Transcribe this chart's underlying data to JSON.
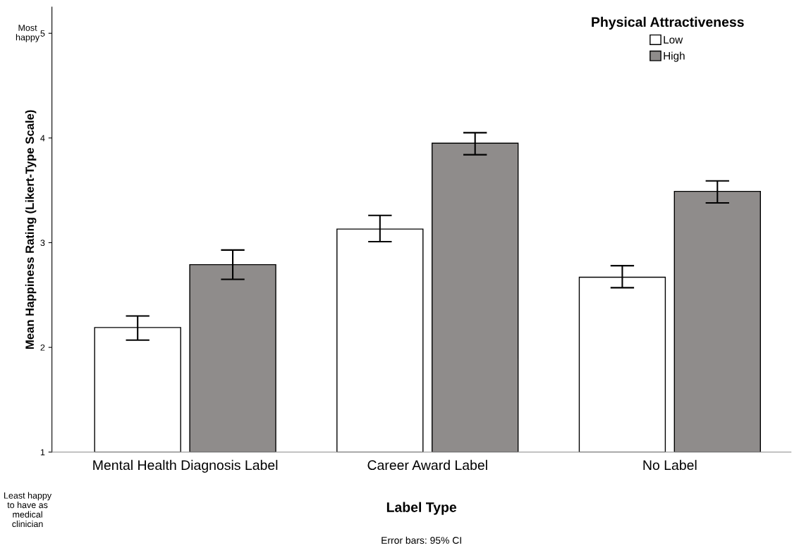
{
  "chart_data": {
    "type": "bar",
    "xlabel": "Label Type",
    "ylabel": "Mean Happiness Rating (Likert-Type Scale)",
    "legend_title": "Physical Attractiveness",
    "categories": [
      "Mental Health Diagnosis Label",
      "Career Award Label",
      "No Label"
    ],
    "series": [
      {
        "name": "Low",
        "color": "#ffffff",
        "values": [
          2.19,
          3.13,
          2.67
        ],
        "errors": [
          [
            2.07,
            2.3
          ],
          [
            3.01,
            3.26
          ],
          [
            2.57,
            2.78
          ]
        ]
      },
      {
        "name": "High",
        "color": "#8f8c8b",
        "values": [
          2.79,
          3.95,
          3.49
        ],
        "errors": [
          [
            2.65,
            2.93
          ],
          [
            3.84,
            4.05
          ],
          [
            3.38,
            3.59
          ]
        ]
      }
    ],
    "ylim": [
      1,
      5.25
    ],
    "yticks": [
      1,
      2,
      3,
      4,
      5
    ],
    "grid": false,
    "legend": "top right",
    "annotations": [
      "Most\nhappy",
      "Least happy\nto have as\nmedical\nclinician",
      "Error bars: 95% CI"
    ]
  }
}
